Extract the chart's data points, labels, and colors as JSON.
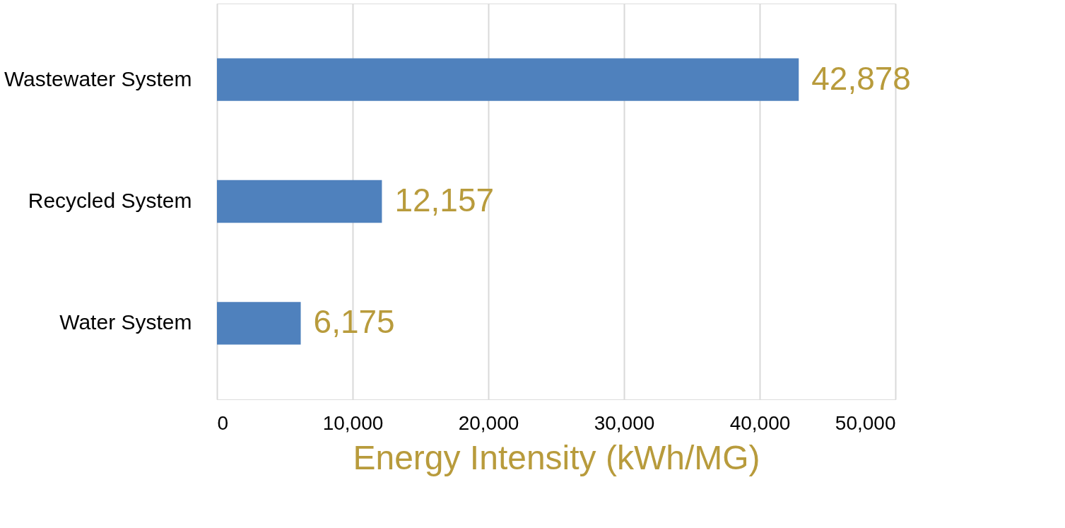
{
  "chart_data": {
    "type": "bar",
    "orientation": "horizontal",
    "categories": [
      "Wastewater System",
      "Recycled System",
      "Water System"
    ],
    "values": [
      42878,
      12157,
      6175
    ],
    "value_labels": [
      "42,878",
      "12,157",
      "6,175"
    ],
    "color": "#4f81bd",
    "xlim": [
      0,
      50000
    ],
    "xticks": [
      {
        "value": 0,
        "label": "0"
      },
      {
        "value": 10000,
        "label": "10,000"
      },
      {
        "value": 20000,
        "label": "20,000"
      },
      {
        "value": 30000,
        "label": "30,000"
      },
      {
        "value": 40000,
        "label": "40,000"
      },
      {
        "value": 50000,
        "label": "50,000"
      }
    ],
    "grid": "x",
    "xlabel": "Energy Intensity (kWh/MG)"
  }
}
